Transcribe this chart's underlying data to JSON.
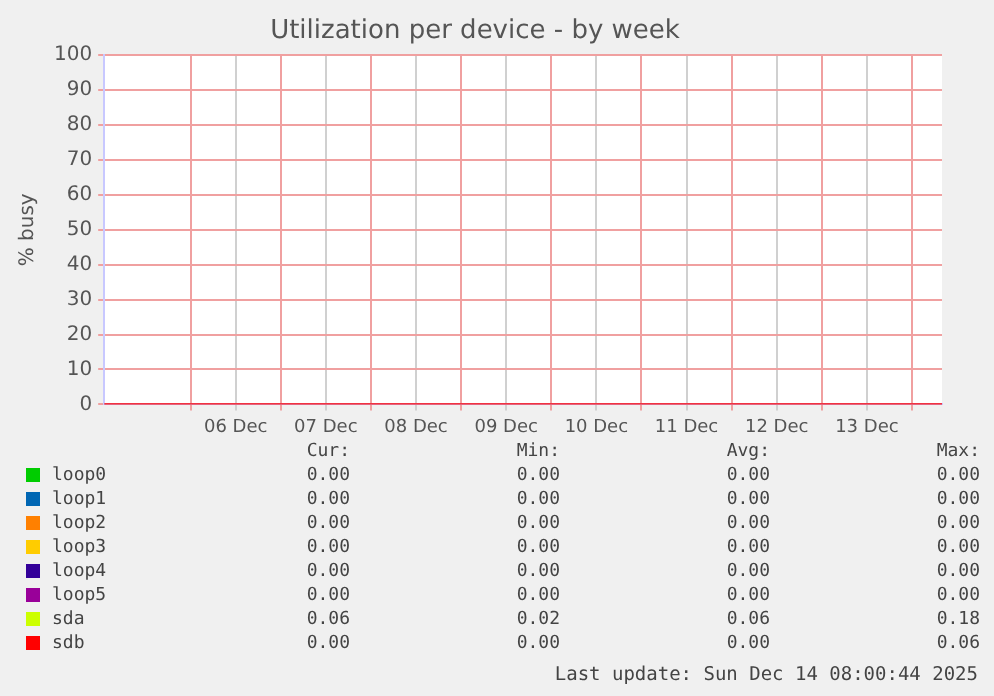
{
  "chart_data": {
    "type": "line",
    "title": "Utilization per device - by week",
    "ylabel": "% busy",
    "x": [
      "2025-12-05T01:00",
      "2025-12-06T00:00",
      "2025-12-07T00:00",
      "2025-12-08T00:00",
      "2025-12-09T00:00",
      "2025-12-10T00:00",
      "2025-12-11T00:00",
      "2025-12-12T00:00",
      "2025-12-13T00:00",
      "2025-12-14T00:00",
      "2025-12-14T08:00"
    ],
    "series": [
      {
        "name": "loop0",
        "color": "#00cc00",
        "values": [
          null,
          null,
          null,
          null,
          null,
          null,
          null,
          null,
          null,
          null,
          null
        ]
      },
      {
        "name": "loop1",
        "color": "#0066b3",
        "values": [
          null,
          null,
          null,
          null,
          null,
          null,
          null,
          null,
          null,
          null,
          null
        ]
      },
      {
        "name": "loop2",
        "color": "#ff8000",
        "values": [
          null,
          null,
          null,
          null,
          null,
          null,
          null,
          null,
          null,
          null,
          null
        ]
      },
      {
        "name": "loop3",
        "color": "#ffcc00",
        "values": [
          null,
          null,
          null,
          null,
          null,
          null,
          null,
          null,
          null,
          null,
          null
        ]
      },
      {
        "name": "loop4",
        "color": "#330099",
        "values": [
          null,
          null,
          null,
          null,
          null,
          null,
          null,
          null,
          null,
          null,
          null
        ]
      },
      {
        "name": "loop5",
        "color": "#990099",
        "values": [
          null,
          null,
          null,
          null,
          null,
          null,
          null,
          null,
          null,
          null,
          null
        ]
      },
      {
        "name": "sda",
        "color": "#ccff00",
        "values": [
          null,
          null,
          null,
          null,
          null,
          null,
          null,
          null,
          null,
          null,
          null
        ]
      },
      {
        "name": "sdb",
        "color": "#ff0000",
        "values": [
          0,
          0,
          0,
          0,
          0,
          0,
          0,
          0,
          0,
          0,
          0
        ]
      }
    ],
    "xlim": [
      "2025-12-05T01:00",
      "2025-12-14T08:00"
    ],
    "xticks": [
      {
        "value": "2025-12-06T00:00",
        "label": null
      },
      {
        "value": "2025-12-06T12:00",
        "label": "06 Dec"
      },
      {
        "value": "2025-12-07T00:00",
        "label": null
      },
      {
        "value": "2025-12-07T12:00",
        "label": "07 Dec"
      },
      {
        "value": "2025-12-08T00:00",
        "label": null
      },
      {
        "value": "2025-12-08T12:00",
        "label": "08 Dec"
      },
      {
        "value": "2025-12-09T00:00",
        "label": null
      },
      {
        "value": "2025-12-09T12:00",
        "label": "09 Dec"
      },
      {
        "value": "2025-12-10T00:00",
        "label": null
      },
      {
        "value": "2025-12-10T12:00",
        "label": "10 Dec"
      },
      {
        "value": "2025-12-11T00:00",
        "label": null
      },
      {
        "value": "2025-12-11T12:00",
        "label": "11 Dec"
      },
      {
        "value": "2025-12-12T00:00",
        "label": null
      },
      {
        "value": "2025-12-12T12:00",
        "label": "12 Dec"
      },
      {
        "value": "2025-12-13T00:00",
        "label": null
      },
      {
        "value": "2025-12-13T12:00",
        "label": "13 Dec"
      },
      {
        "value": "2025-12-14T00:00",
        "label": null
      }
    ],
    "ylim": [
      0,
      100
    ],
    "yticks": [
      0,
      10,
      20,
      30,
      40,
      50,
      60,
      70,
      80,
      90,
      100
    ],
    "grid": true,
    "legend": "bottom",
    "marker": "none",
    "line_style": "solid",
    "annotations": [
      "Cur:",
      "Min:",
      "Avg:",
      "Max:",
      "0.00",
      "0.00",
      "0.00",
      "0.00",
      "0.00",
      "0.00",
      "0.00",
      "0.00",
      "0.00",
      "0.00",
      "0.00",
      "0.00",
      "0.00",
      "0.00",
      "0.00",
      "0.00",
      "0.00",
      "0.00",
      "0.00",
      "0.00",
      "0.00",
      "0.00",
      "0.00",
      "0.00",
      "0.06",
      "0.02",
      "0.06",
      "0.18",
      "0.00",
      "0.00",
      "0.00",
      "0.06",
      "Last update: Sun Dec 14 08:00:44 2025"
    ]
  }
}
